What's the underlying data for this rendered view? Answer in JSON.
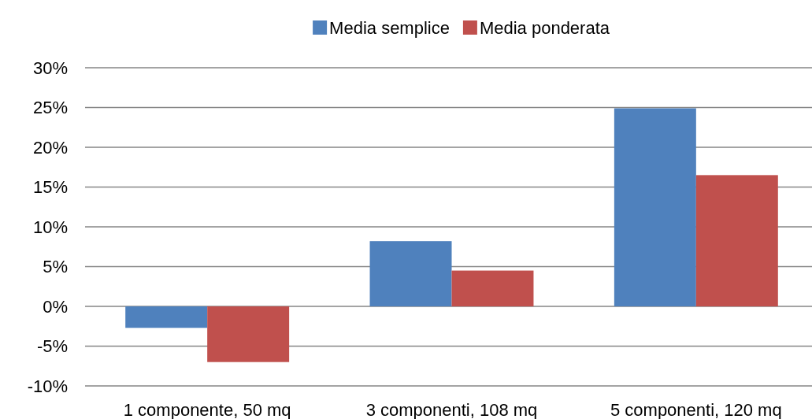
{
  "chart_data": {
    "type": "bar",
    "categories": [
      "1 componente, 50 mq",
      "3 componenti, 108 mq",
      "5 componenti, 120 mq"
    ],
    "series": [
      {
        "name": "Media semplice",
        "color": "#4f81bd",
        "values": [
          -2.7,
          8.2,
          24.9
        ]
      },
      {
        "name": "Media ponderata",
        "color": "#c0504d",
        "values": [
          -7.0,
          4.5,
          16.5
        ]
      }
    ],
    "ylim": [
      -10,
      30
    ],
    "yticks": [
      {
        "value": -10,
        "label": "-10%"
      },
      {
        "value": -5,
        "label": "-5%"
      },
      {
        "value": 0,
        "label": "0%"
      },
      {
        "value": 5,
        "label": "5%"
      },
      {
        "value": 10,
        "label": "10%"
      },
      {
        "value": 15,
        "label": "15%"
      },
      {
        "value": 20,
        "label": "20%"
      },
      {
        "value": 25,
        "label": "25%"
      },
      {
        "value": 30,
        "label": "30%"
      }
    ],
    "grid": "y",
    "legend": "top"
  }
}
